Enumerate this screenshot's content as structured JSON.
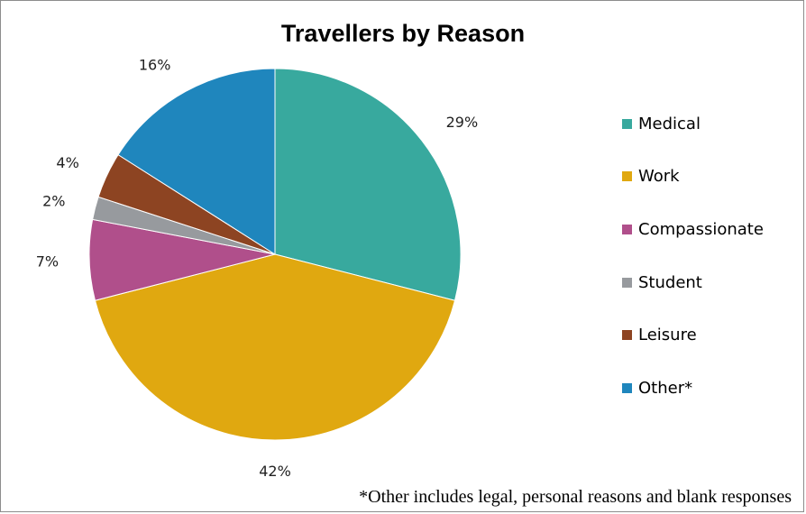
{
  "chart_data": {
    "type": "pie",
    "title": "Travellers by Reason",
    "slices": [
      {
        "name": "Medical",
        "value": 29,
        "label": "29%",
        "color": "#38a99e"
      },
      {
        "name": "Work",
        "value": 42,
        "label": "42%",
        "color": "#e0a810"
      },
      {
        "name": "Compassionate",
        "value": 7,
        "label": "7%",
        "color": "#b04f8b"
      },
      {
        "name": "Student",
        "value": 2,
        "label": "2%",
        "color": "#979a9e"
      },
      {
        "name": "Leisure",
        "value": 4,
        "label": "4%",
        "color": "#8d4422"
      },
      {
        "name": "Other*",
        "value": 16,
        "label": "16%",
        "color": "#1f86bd"
      }
    ],
    "legend_position": "right",
    "footnote": "*Other includes legal, personal reasons and blank responses"
  }
}
